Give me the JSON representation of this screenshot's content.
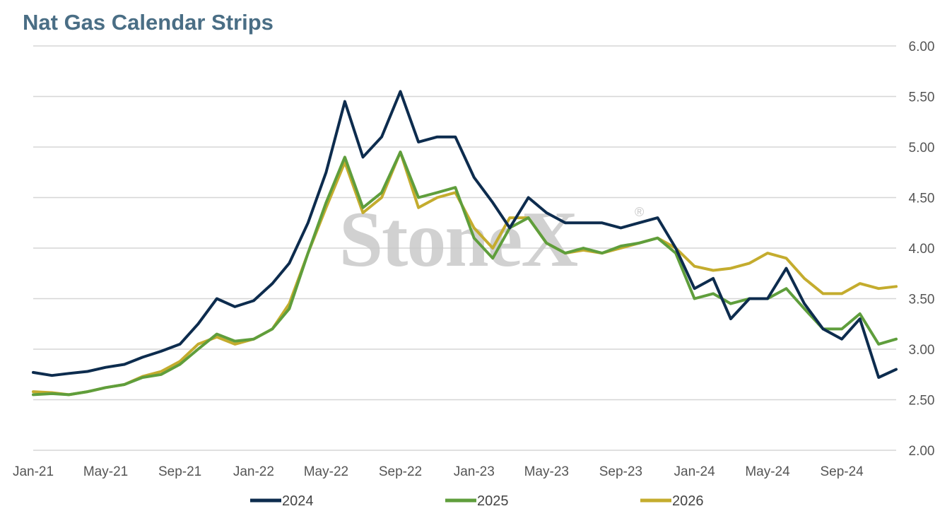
{
  "chart_data": {
    "type": "line",
    "title": "Nat Gas Calendar Strips",
    "xlabel": "",
    "ylabel": "",
    "ylim": [
      2.0,
      6.0
    ],
    "yticks": [
      "6.00",
      "5.50",
      "5.00",
      "4.50",
      "4.00",
      "3.50",
      "3.00",
      "2.50",
      "2.00"
    ],
    "xticks": [
      "Jan-21",
      "May-21",
      "Sep-21",
      "Jan-22",
      "May-22",
      "Sep-22",
      "Jan-23",
      "May-23",
      "Sep-23",
      "Jan-24",
      "May-24",
      "Sep-24"
    ],
    "xlim": [
      "2021-01-01",
      "2024-11-30"
    ],
    "grid": true,
    "legend_position": "bottom",
    "watermark": "StoneX",
    "x": [
      "2021-01-01",
      "2021-02-01",
      "2021-03-01",
      "2021-04-01",
      "2021-05-01",
      "2021-06-01",
      "2021-07-01",
      "2021-08-01",
      "2021-09-01",
      "2021-10-01",
      "2021-11-01",
      "2021-12-01",
      "2022-01-01",
      "2022-02-01",
      "2022-03-01",
      "2022-04-01",
      "2022-05-01",
      "2022-06-01",
      "2022-07-01",
      "2022-08-01",
      "2022-09-01",
      "2022-10-01",
      "2022-11-01",
      "2022-12-01",
      "2023-01-01",
      "2023-02-01",
      "2023-03-01",
      "2023-04-01",
      "2023-05-01",
      "2023-06-01",
      "2023-07-01",
      "2023-08-01",
      "2023-09-01",
      "2023-10-01",
      "2023-11-01",
      "2023-12-01",
      "2024-01-01",
      "2024-02-01",
      "2024-03-01",
      "2024-04-01",
      "2024-05-01",
      "2024-06-01",
      "2024-07-01",
      "2024-08-01",
      "2024-09-01",
      "2024-10-01",
      "2024-11-01",
      "2024-11-30"
    ],
    "series": [
      {
        "name": "2024",
        "color": "#0d2c4e",
        "values": [
          2.77,
          2.74,
          2.76,
          2.78,
          2.82,
          2.85,
          2.92,
          2.98,
          3.05,
          3.25,
          3.5,
          3.42,
          3.48,
          3.65,
          3.85,
          4.25,
          4.75,
          5.45,
          4.9,
          5.1,
          5.55,
          5.05,
          5.1,
          5.1,
          4.7,
          4.45,
          4.2,
          4.5,
          4.35,
          4.25,
          4.25,
          4.25,
          4.2,
          4.25,
          4.3,
          4.0,
          3.6,
          3.7,
          3.3,
          3.5,
          3.5,
          3.8,
          3.45,
          3.2,
          3.1,
          3.3,
          2.72,
          2.8
        ]
      },
      {
        "name": "2025",
        "color": "#5f9e3c",
        "values": [
          2.55,
          2.56,
          2.55,
          2.58,
          2.62,
          2.65,
          2.72,
          2.75,
          2.85,
          3.0,
          3.15,
          3.08,
          3.1,
          3.2,
          3.4,
          3.95,
          4.45,
          4.9,
          4.4,
          4.55,
          4.95,
          4.5,
          4.55,
          4.6,
          4.1,
          3.9,
          4.2,
          4.3,
          4.05,
          3.95,
          4.0,
          3.95,
          4.02,
          4.05,
          4.1,
          3.95,
          3.5,
          3.55,
          3.45,
          3.5,
          3.5,
          3.6,
          3.4,
          3.2,
          3.2,
          3.35,
          3.05,
          3.1
        ]
      },
      {
        "name": "2026",
        "color": "#c4ac2e",
        "values": [
          2.58,
          2.57,
          2.55,
          2.58,
          2.62,
          2.65,
          2.73,
          2.78,
          2.88,
          3.05,
          3.12,
          3.05,
          3.1,
          3.2,
          3.45,
          3.95,
          4.4,
          4.85,
          4.35,
          4.5,
          4.95,
          4.4,
          4.5,
          4.55,
          4.2,
          4.0,
          4.3,
          4.3,
          4.05,
          3.95,
          3.98,
          3.95,
          4.0,
          4.05,
          4.1,
          4.0,
          3.82,
          3.78,
          3.8,
          3.85,
          3.95,
          3.9,
          3.7,
          3.55,
          3.55,
          3.65,
          3.6,
          3.62
        ]
      }
    ]
  }
}
